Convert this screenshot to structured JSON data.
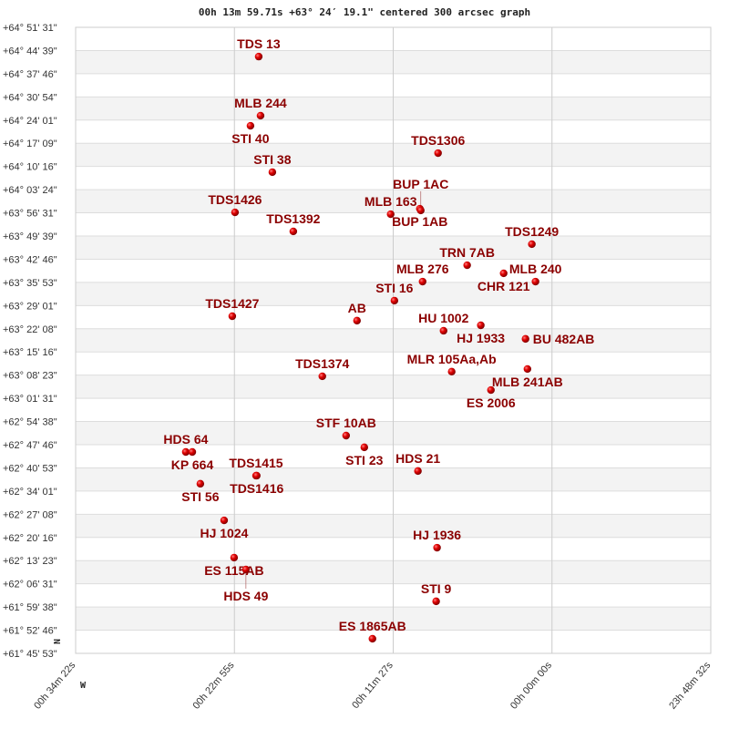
{
  "chart_data": {
    "type": "scatter",
    "title": "00h 13m 59.71s +63° 24′ 19.1\" centered 300 arcsec graph",
    "x_axis_reversed": true,
    "xlim_hours": [
      0.5728,
      -0.1911
    ],
    "ylim_deg": [
      61.7647,
      64.8586
    ],
    "x_ticks": [
      "00h 34m 22s",
      "00h 22m 55s",
      "00h 11m 27s",
      "00h 00m 00s",
      "23h 48m 32s"
    ],
    "y_ticks": [
      "+64° 51' 31\"",
      "+64° 44' 39\"",
      "+64° 37' 46\"",
      "+64° 30' 54\"",
      "+64° 24' 01\"",
      "+64° 17' 09\"",
      "+64° 10' 16\"",
      "+64° 03' 24\"",
      "+63° 56' 31\"",
      "+63° 49' 39\"",
      "+63° 42' 46\"",
      "+63° 35' 53\"",
      "+63° 29' 01\"",
      "+63° 22' 08\"",
      "+63° 15' 16\"",
      "+63° 08' 23\"",
      "+63° 01' 31\"",
      "+62° 54' 38\"",
      "+62° 47' 46\"",
      "+62° 40' 53\"",
      "+62° 34' 01\"",
      "+62° 27' 08\"",
      "+62° 20' 16\"",
      "+62° 13' 23\"",
      "+62° 06' 31\"",
      "+61° 59' 38\"",
      "+61° 52' 46\"",
      "+61° 45' 53\""
    ],
    "grid": true,
    "directions": {
      "north": "N",
      "west": "W"
    },
    "marker_color": "#dd0000",
    "label_color": "#8b0000",
    "points": [
      {
        "name": "TDS  13",
        "ra_h": 0.3526,
        "dec": 64.714
      },
      {
        "name": "MLB 244",
        "ra_h": 0.3504,
        "dec": 64.422
      },
      {
        "name": "STI  40",
        "ra_h": 0.3625,
        "dec": 64.372
      },
      {
        "name": "STI  38",
        "ra_h": 0.3362,
        "dec": 64.143
      },
      {
        "name": "TDS1426",
        "ra_h": 0.3811,
        "dec": 63.944
      },
      {
        "name": "TDS1392",
        "ra_h": 0.311,
        "dec": 63.85
      },
      {
        "name": "TDS1306",
        "ra_h": 0.1369,
        "dec": 64.237
      },
      {
        "name": "MLB 163",
        "ra_h": 0.1939,
        "dec": 63.935
      },
      {
        "name": "BUP   1AB",
        "ra_h": 0.1588,
        "dec": 63.962
      },
      {
        "name": "BUP   1AC",
        "ra_h": 0.1577,
        "dec": 63.954
      },
      {
        "name": "TDS1249",
        "ra_h": 0.0241,
        "dec": 63.787
      },
      {
        "name": "TRN   7AB",
        "ra_h": 0.1019,
        "dec": 63.683
      },
      {
        "name": "CHR 121",
        "ra_h": 0.058,
        "dec": 63.643
      },
      {
        "name": "MLB 240",
        "ra_h": 0.0197,
        "dec": 63.602
      },
      {
        "name": "MLB 276",
        "ra_h": 0.1555,
        "dec": 63.602
      },
      {
        "name": "STI  16",
        "ra_h": 0.1894,
        "dec": 63.508
      },
      {
        "name": "TDS1427",
        "ra_h": 0.3844,
        "dec": 63.431
      },
      {
        "name": "AB",
        "ra_h": 0.2344,
        "dec": 63.409
      },
      {
        "name": "HU 1002",
        "ra_h": 0.1303,
        "dec": 63.359
      },
      {
        "name": "HJ 1933",
        "ra_h": 0.0855,
        "dec": 63.386
      },
      {
        "name": "BU  482AB",
        "ra_h": 0.0317,
        "dec": 63.319
      },
      {
        "name": "MLR 105Aa,Ab",
        "ra_h": 0.1205,
        "dec": 63.157
      },
      {
        "name": "MLB 241AB",
        "ra_h": 0.0294,
        "dec": 63.17
      },
      {
        "name": "TDS1374",
        "ra_h": 0.2761,
        "dec": 63.134
      },
      {
        "name": "ES 2006",
        "ra_h": 0.0733,
        "dec": 63.066
      },
      {
        "name": "STF  10AB",
        "ra_h": 0.2475,
        "dec": 62.841
      },
      {
        "name": "STI  23",
        "ra_h": 0.2256,
        "dec": 62.783
      },
      {
        "name": "HDS  64",
        "ra_h": 0.4403,
        "dec": 62.76
      },
      {
        "name": "KP  664",
        "ra_h": 0.4325,
        "dec": 62.76
      },
      {
        "name": "HDS  21",
        "ra_h": 0.1611,
        "dec": 62.666
      },
      {
        "name": "TDS1415",
        "ra_h": 0.3558,
        "dec": 62.643
      },
      {
        "name": "TDS1416",
        "ra_h": 0.355,
        "dec": 62.643
      },
      {
        "name": "STI  56",
        "ra_h": 0.4228,
        "dec": 62.603
      },
      {
        "name": "HJ 1024",
        "ra_h": 0.3942,
        "dec": 62.422
      },
      {
        "name": "HJ 1936",
        "ra_h": 0.1381,
        "dec": 62.287
      },
      {
        "name": "ES  115AB",
        "ra_h": 0.3822,
        "dec": 62.238
      },
      {
        "name": "HDS  49",
        "ra_h": 0.368,
        "dec": 62.179
      },
      {
        "name": "STI   9",
        "ra_h": 0.1392,
        "dec": 62.022
      },
      {
        "name": "ES 1865AB",
        "ra_h": 0.2158,
        "dec": 61.837
      }
    ]
  }
}
